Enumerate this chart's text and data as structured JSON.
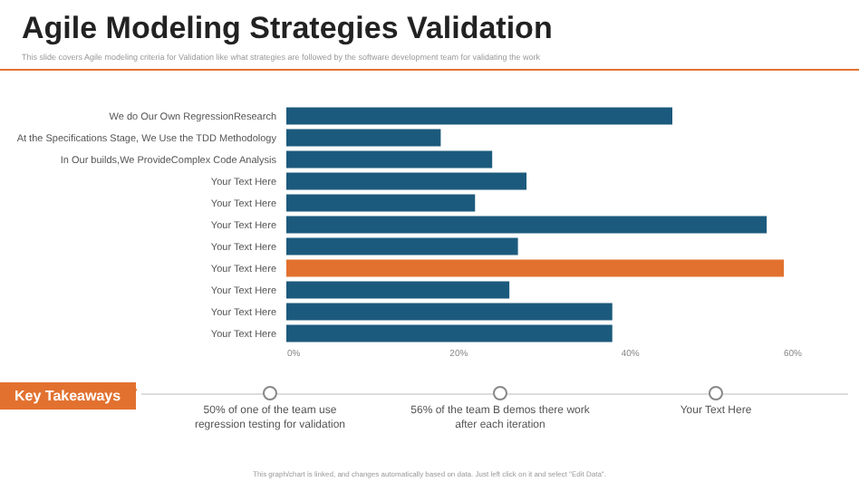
{
  "chart_data": {
    "type": "bar",
    "orientation": "horizontal",
    "title": "Agile Modeling Strategies Validation",
    "subtitle": "This slide covers Agile modeling criteria for Validation like what strategies are followed by the software development team for validating the work",
    "categories": [
      "We do Our Own RegressionResearch",
      "At the Specifications Stage, We Use the TDD Methodology",
      "In Our builds,We ProvideComplex Code Analysis",
      "Your Text Here",
      "Your Text Here",
      "Your Text Here",
      "Your Text Here",
      "Your Text Here",
      "Your Text Here",
      "Your Text Here",
      "Your Text Here"
    ],
    "values": [
      45,
      18,
      24,
      28,
      22,
      56,
      27,
      58,
      26,
      38,
      38
    ],
    "colors": [
      "#1c5a7d",
      "#1c5a7d",
      "#1c5a7d",
      "#1c5a7d",
      "#1c5a7d",
      "#1c5a7d",
      "#1c5a7d",
      "#e2712f",
      "#1c5a7d",
      "#1c5a7d",
      "#1c5a7d"
    ],
    "xlim": [
      0,
      60
    ],
    "xticks": [
      {
        "value": 0,
        "label": "0%"
      },
      {
        "value": 20,
        "label": "20%"
      },
      {
        "value": 40,
        "label": "40%"
      },
      {
        "value": 60,
        "label": "60%"
      }
    ],
    "grid": false,
    "annotations": [
      "Key Takeaways",
      "50% of one of the team use regression testing for validation",
      "56% of the team B demos there work after each iteration",
      "Your Text Here",
      "This graph/chart is linked, and changes automatically based on data. Just left click on it and select \"Edit Data\"."
    ]
  }
}
